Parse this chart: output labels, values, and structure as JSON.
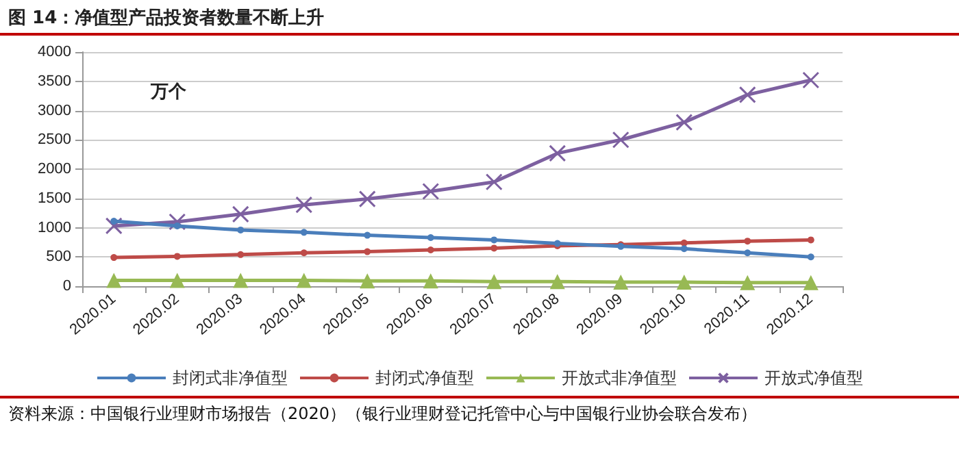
{
  "chart_data": {
    "type": "line",
    "title": "图 14：净值型产品投资者数量不断上升",
    "ylabel": "万个",
    "categories": [
      "2020.01",
      "2020.02",
      "2020.03",
      "2020.04",
      "2020.05",
      "2020.06",
      "2020.07",
      "2020.08",
      "2020.09",
      "2020.10",
      "2020.11",
      "2020.12"
    ],
    "series": [
      {
        "name": "封闭式非净值型",
        "color": "#4a7ebb",
        "marker": "circle",
        "values": [
          1110,
          1030,
          960,
          920,
          870,
          830,
          790,
          730,
          680,
          640,
          570,
          500
        ]
      },
      {
        "name": "封闭式净值型",
        "color": "#be4b48",
        "marker": "circle",
        "values": [
          490,
          510,
          540,
          570,
          590,
          620,
          650,
          690,
          710,
          740,
          770,
          790
        ]
      },
      {
        "name": "开放式非净值型",
        "color": "#98b954",
        "marker": "triangle",
        "values": [
          100,
          100,
          100,
          100,
          90,
          90,
          80,
          80,
          70,
          70,
          60,
          60
        ]
      },
      {
        "name": "开放式净值型",
        "color": "#7d60a0",
        "marker": "cross",
        "values": [
          1030,
          1100,
          1230,
          1390,
          1490,
          1620,
          1780,
          2270,
          2500,
          2800,
          3270,
          3520
        ]
      }
    ],
    "ylim": [
      0,
      4000
    ],
    "yticks": [
      0,
      500,
      1000,
      1500,
      2000,
      2500,
      3000,
      3500,
      4000
    ],
    "grid": "y",
    "legend": "bottom",
    "annotations": [
      "资料来源：中国银行业理财市场报告（2020）（银行业理财登记托管中心与中国银行业协会联合发布）"
    ]
  }
}
